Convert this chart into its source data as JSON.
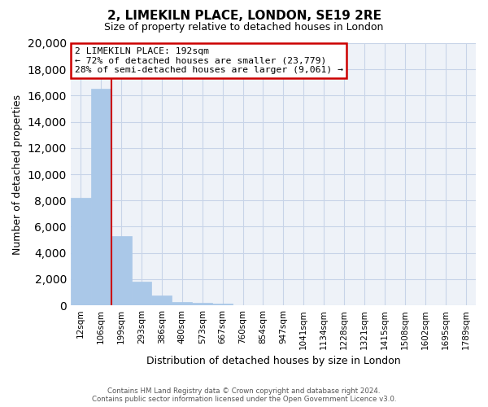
{
  "title": "2, LIMEKILN PLACE, LONDON, SE19 2RE",
  "subtitle": "Size of property relative to detached houses in London",
  "xlabel": "Distribution of detached houses by size in London",
  "ylabel": "Number of detached properties",
  "bar_values": [
    8200,
    16500,
    5300,
    1800,
    750,
    270,
    200,
    120,
    0,
    0,
    0,
    0,
    0,
    0,
    0,
    0,
    0,
    0,
    0,
    0
  ],
  "bar_labels": [
    "12sqm",
    "106sqm",
    "199sqm",
    "293sqm",
    "386sqm",
    "480sqm",
    "573sqm",
    "667sqm",
    "760sqm",
    "854sqm",
    "947sqm",
    "1041sqm",
    "1134sqm",
    "1228sqm",
    "1321sqm",
    "1415sqm",
    "1508sqm",
    "1602sqm",
    "1695sqm",
    "1789sqm"
  ],
  "bar_color": "#aac8e8",
  "property_line_color": "#cc0000",
  "property_line_x": 1.5,
  "annotation_line1": "2 LIMEKILN PLACE: 192sqm",
  "annotation_line2": "← 72% of detached houses are smaller (23,779)",
  "annotation_line3": "28% of semi-detached houses are larger (9,061) →",
  "annotation_box_edge_color": "#cc0000",
  "ylim": [
    0,
    20000
  ],
  "yticks": [
    0,
    2000,
    4000,
    6000,
    8000,
    10000,
    12000,
    14000,
    16000,
    18000,
    20000
  ],
  "grid_color": "#c8d4e8",
  "background_color": "#eef2f8",
  "footer_line1": "Contains HM Land Registry data © Crown copyright and database right 2024.",
  "footer_line2": "Contains public sector information licensed under the Open Government Licence v3.0.",
  "fig_width": 6.0,
  "fig_height": 5.0
}
